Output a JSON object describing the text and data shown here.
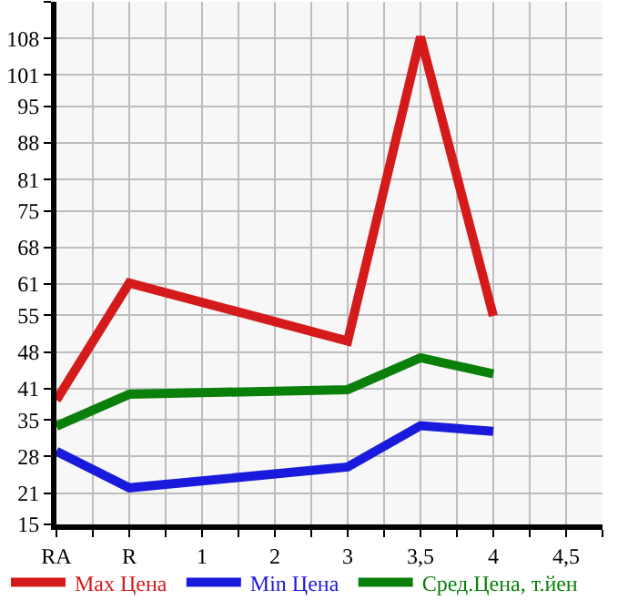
{
  "chart_data": {
    "type": "line",
    "categories": [
      "RA",
      "R",
      "1",
      "2",
      "3",
      "3,5",
      "4",
      "4,5"
    ],
    "series": [
      {
        "name": "Max Цена",
        "color": "#d41a1a",
        "x": [
          "RA",
          "R",
          "3",
          "3,5",
          "4"
        ],
        "values": [
          38.8,
          61.2,
          50.1,
          108.3,
          54.9
        ]
      },
      {
        "name": "Min Цена",
        "color": "#1a1adc",
        "x": [
          "RA",
          "R",
          "3",
          "3,5",
          "4"
        ],
        "values": [
          29.0,
          22.0,
          26.0,
          33.9,
          32.8
        ]
      },
      {
        "name": "Сред.Цена, т.йен",
        "color": "#0a7f0a",
        "x": [
          "RA",
          "R",
          "3",
          "3,5",
          "4"
        ],
        "values": [
          33.8,
          39.9,
          40.8,
          46.9,
          43.8
        ]
      }
    ],
    "ylim": [
      15,
      115
    ],
    "yticks": [
      15,
      21,
      28,
      35,
      41,
      48,
      55,
      61,
      68,
      75,
      81,
      88,
      95,
      101,
      108,
      {
        "value": 115,
        "label": null
      }
    ],
    "grid": true,
    "legend": "bottom",
    "marker": "none",
    "line_style": "solid"
  }
}
